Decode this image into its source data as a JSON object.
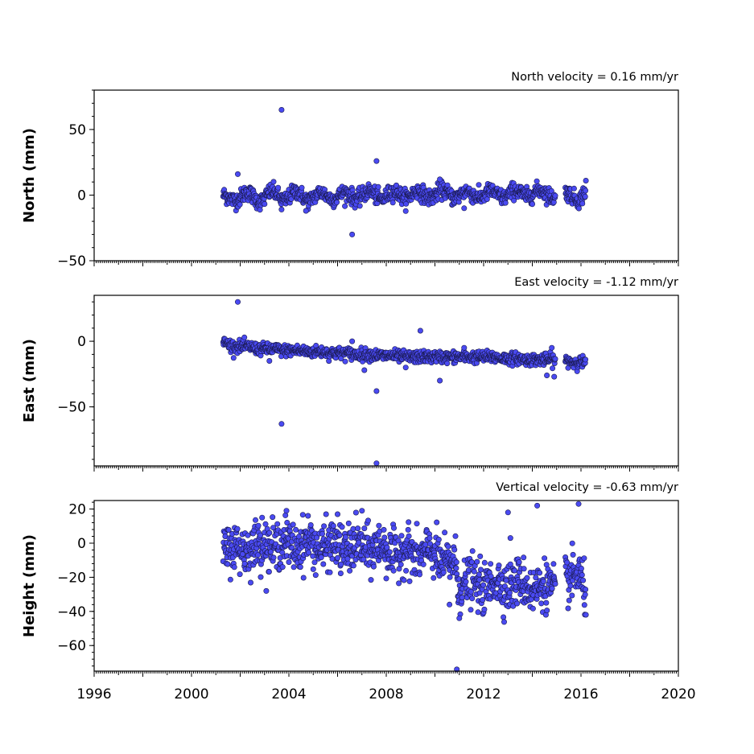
{
  "chart_data": [
    {
      "type": "scatter",
      "title": "North velocity = 0.16 mm/yr",
      "ylabel": "North (mm)",
      "ylim": [
        -50,
        80
      ],
      "yticks": [
        -50,
        0,
        50
      ],
      "xlim": [
        1996,
        2020
      ],
      "color": "#4a4af2",
      "trend": [
        {
          "x": 2001.3,
          "y": 0
        },
        {
          "x": 2001.8,
          "y": -4
        },
        {
          "x": 2002.3,
          "y": 2
        },
        {
          "x": 2002.8,
          "y": -5
        },
        {
          "x": 2003.3,
          "y": 3
        },
        {
          "x": 2003.8,
          "y": -4
        },
        {
          "x": 2004.3,
          "y": 3
        },
        {
          "x": 2004.8,
          "y": -4
        },
        {
          "x": 2005.3,
          "y": 2
        },
        {
          "x": 2005.8,
          "y": -3
        },
        {
          "x": 2006.3,
          "y": 2
        },
        {
          "x": 2006.8,
          "y": -3
        },
        {
          "x": 2007.3,
          "y": 3
        },
        {
          "x": 2007.8,
          "y": -3
        },
        {
          "x": 2008.3,
          "y": 3
        },
        {
          "x": 2008.8,
          "y": -2
        },
        {
          "x": 2009.3,
          "y": 3
        },
        {
          "x": 2009.8,
          "y": -2
        },
        {
          "x": 2010.3,
          "y": 4
        },
        {
          "x": 2010.8,
          "y": -2
        },
        {
          "x": 2011.3,
          "y": 3
        },
        {
          "x": 2011.8,
          "y": -2
        },
        {
          "x": 2012.3,
          "y": 3
        },
        {
          "x": 2012.8,
          "y": -2
        },
        {
          "x": 2013.3,
          "y": 4
        },
        {
          "x": 2013.8,
          "y": -1
        },
        {
          "x": 2014.3,
          "y": 4
        },
        {
          "x": 2014.9,
          "y": -2
        },
        {
          "x": 2015.4,
          "y": 2
        },
        {
          "x": 2015.9,
          "y": -4
        },
        {
          "x": 2016.2,
          "y": 3
        }
      ],
      "gaps": [
        [
          2014.95,
          2015.35
        ]
      ],
      "spread": 3,
      "outliers": [
        {
          "x": 2003.7,
          "y": 65
        },
        {
          "x": 2007.6,
          "y": 26
        },
        {
          "x": 2006.6,
          "y": -30
        },
        {
          "x": 2001.9,
          "y": 16
        },
        {
          "x": 2010.2,
          "y": 12
        },
        {
          "x": 2016.2,
          "y": 11
        },
        {
          "x": 2003.7,
          "y": -11
        },
        {
          "x": 2004.7,
          "y": -12
        },
        {
          "x": 2011.2,
          "y": -10
        }
      ]
    },
    {
      "type": "scatter",
      "title": "East velocity = -1.12 mm/yr",
      "ylabel": "East (mm)",
      "ylim": [
        -95,
        35
      ],
      "yticks": [
        -50,
        0
      ],
      "xlim": [
        1996,
        2020
      ],
      "color": "#4a4af2",
      "trend": [
        {
          "x": 2001.3,
          "y": -1
        },
        {
          "x": 2001.8,
          "y": -4
        },
        {
          "x": 2002.3,
          "y": -4
        },
        {
          "x": 2002.8,
          "y": -6
        },
        {
          "x": 2003.3,
          "y": -6
        },
        {
          "x": 2003.8,
          "y": -7
        },
        {
          "x": 2004.3,
          "y": -7
        },
        {
          "x": 2004.8,
          "y": -8
        },
        {
          "x": 2005.3,
          "y": -8
        },
        {
          "x": 2005.8,
          "y": -9
        },
        {
          "x": 2006.3,
          "y": -9
        },
        {
          "x": 2006.8,
          "y": -10
        },
        {
          "x": 2007.3,
          "y": -10
        },
        {
          "x": 2007.8,
          "y": -11
        },
        {
          "x": 2008.3,
          "y": -11
        },
        {
          "x": 2008.8,
          "y": -12
        },
        {
          "x": 2009.3,
          "y": -12
        },
        {
          "x": 2009.8,
          "y": -12
        },
        {
          "x": 2010.3,
          "y": -12
        },
        {
          "x": 2010.8,
          "y": -12
        },
        {
          "x": 2011.3,
          "y": -12
        },
        {
          "x": 2011.8,
          "y": -12
        },
        {
          "x": 2012.3,
          "y": -12
        },
        {
          "x": 2012.8,
          "y": -13
        },
        {
          "x": 2013.3,
          "y": -13
        },
        {
          "x": 2013.8,
          "y": -14
        },
        {
          "x": 2014.3,
          "y": -14
        },
        {
          "x": 2014.9,
          "y": -14
        },
        {
          "x": 2015.4,
          "y": -15
        },
        {
          "x": 2015.9,
          "y": -16
        },
        {
          "x": 2016.2,
          "y": -16
        }
      ],
      "gaps": [
        [
          2014.95,
          2015.35
        ]
      ],
      "spread": 2.2,
      "outliers": [
        {
          "x": 2001.9,
          "y": 30
        },
        {
          "x": 2009.4,
          "y": 8
        },
        {
          "x": 2003.7,
          "y": -63
        },
        {
          "x": 2007.6,
          "y": -38
        },
        {
          "x": 2007.6,
          "y": -93
        },
        {
          "x": 2010.2,
          "y": -30
        },
        {
          "x": 2014.6,
          "y": -26
        },
        {
          "x": 2014.9,
          "y": -27
        },
        {
          "x": 2006.6,
          "y": 0
        },
        {
          "x": 2007.1,
          "y": -22
        },
        {
          "x": 2008.8,
          "y": -20
        },
        {
          "x": 2003.2,
          "y": -15
        },
        {
          "x": 2014.8,
          "y": -5
        },
        {
          "x": 2011.2,
          "y": -5
        }
      ]
    },
    {
      "type": "scatter",
      "title": "Vertical velocity = -0.63 mm/yr",
      "ylabel": "Height (mm)",
      "ylim": [
        -75,
        25
      ],
      "yticks": [
        -60,
        -40,
        -20,
        0,
        20
      ],
      "xlim": [
        1996,
        2020
      ],
      "xticks": [
        1996,
        2000,
        2004,
        2008,
        2012,
        2016,
        2020
      ],
      "color": "#4a4af2",
      "trend": [
        {
          "x": 2001.3,
          "y": -5
        },
        {
          "x": 2001.8,
          "y": -2
        },
        {
          "x": 2002.3,
          "y": -4
        },
        {
          "x": 2002.8,
          "y": 0
        },
        {
          "x": 2003.3,
          "y": -3
        },
        {
          "x": 2003.8,
          "y": 1
        },
        {
          "x": 2004.3,
          "y": -3
        },
        {
          "x": 2004.8,
          "y": 2
        },
        {
          "x": 2005.3,
          "y": -4
        },
        {
          "x": 2005.8,
          "y": 0
        },
        {
          "x": 2006.3,
          "y": -5
        },
        {
          "x": 2006.8,
          "y": -1
        },
        {
          "x": 2007.3,
          "y": -5
        },
        {
          "x": 2007.8,
          "y": -1
        },
        {
          "x": 2008.3,
          "y": -8
        },
        {
          "x": 2008.8,
          "y": -3
        },
        {
          "x": 2009.3,
          "y": -9
        },
        {
          "x": 2009.8,
          "y": -4
        },
        {
          "x": 2010.3,
          "y": -12
        },
        {
          "x": 2010.8,
          "y": -10
        },
        {
          "x": 2011.0,
          "y": -26
        },
        {
          "x": 2011.5,
          "y": -22
        },
        {
          "x": 2012.0,
          "y": -27
        },
        {
          "x": 2012.5,
          "y": -22
        },
        {
          "x": 2013.0,
          "y": -26
        },
        {
          "x": 2013.5,
          "y": -22
        },
        {
          "x": 2014.0,
          "y": -28
        },
        {
          "x": 2014.5,
          "y": -24
        },
        {
          "x": 2014.9,
          "y": -27
        },
        {
          "x": 2015.4,
          "y": -22
        },
        {
          "x": 2015.9,
          "y": -18
        },
        {
          "x": 2016.2,
          "y": -30
        }
      ],
      "gaps": [
        [
          2014.95,
          2015.35
        ]
      ],
      "spread": 7,
      "outliers": [
        {
          "x": 2003.9,
          "y": 19
        },
        {
          "x": 2007.0,
          "y": 19
        },
        {
          "x": 2013.0,
          "y": 18
        },
        {
          "x": 2014.2,
          "y": 22
        },
        {
          "x": 2015.9,
          "y": 23
        },
        {
          "x": 2010.9,
          "y": -74
        },
        {
          "x": 2011.0,
          "y": -44
        },
        {
          "x": 2013.1,
          "y": 3
        },
        {
          "x": 2016.2,
          "y": -42
        },
        {
          "x": 2010.6,
          "y": -36
        },
        {
          "x": 2002.9,
          "y": 15
        },
        {
          "x": 2006.0,
          "y": 17
        }
      ]
    }
  ]
}
